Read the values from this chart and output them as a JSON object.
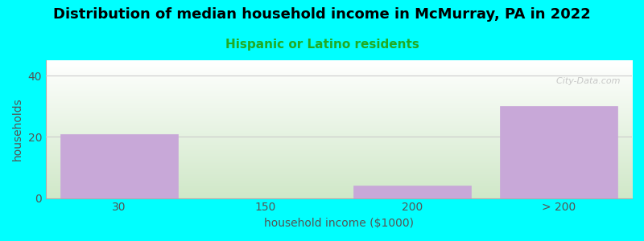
{
  "title": "Distribution of median household income in McMurray, PA in 2022",
  "subtitle": "Hispanic or Latino residents",
  "xlabel": "household income ($1000)",
  "ylabel": "households",
  "categories": [
    "30",
    "150",
    "200",
    "> 200"
  ],
  "values": [
    21,
    0,
    4,
    30
  ],
  "bar_color": "#c8a8d8",
  "bar_edgecolor": "#c8a8d8",
  "ylim": [
    0,
    45
  ],
  "yticks": [
    0,
    20,
    40
  ],
  "background_color": "#00ffff",
  "plot_bg_top": "#ffffff",
  "plot_bg_bottom": "#d0e8c8",
  "title_color": "#000000",
  "subtitle_color": "#22aa22",
  "axis_label_color": "#555555",
  "tick_color": "#555555",
  "watermark": "  City-Data.com",
  "title_fontsize": 13,
  "subtitle_fontsize": 11,
  "label_fontsize": 10,
  "tick_fontsize": 10
}
